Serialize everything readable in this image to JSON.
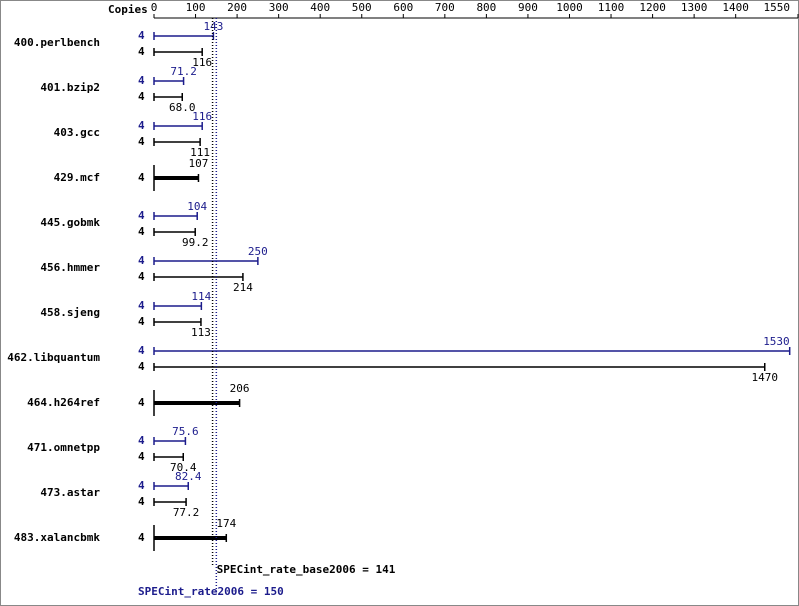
{
  "chart_data": {
    "type": "bar",
    "orientation": "horizontal",
    "x_label": "Copies",
    "categories": [
      "400.perlbench",
      "401.bzip2",
      "403.gcc",
      "429.mcf",
      "445.gobmk",
      "456.hmmer",
      "458.sjeng",
      "462.libquantum",
      "464.h264ref",
      "471.omnetpp",
      "473.astar",
      "483.xalancbmk"
    ],
    "series": [
      {
        "color": "#1c1c8c",
        "values": [
          143,
          71.2,
          116,
          null,
          104,
          250,
          114,
          1530,
          null,
          75.6,
          82.4,
          null
        ],
        "copies": [
          4,
          4,
          4,
          null,
          4,
          4,
          4,
          4,
          null,
          4,
          4,
          null
        ],
        "mean": 150,
        "mean_label": "SPECint_rate2006 = 150"
      },
      {
        "color": "#000000",
        "values": [
          116,
          68.0,
          111,
          107,
          99.2,
          214,
          113,
          1470,
          206,
          70.4,
          77.2,
          174
        ],
        "value_labels": [
          "116",
          "68.0",
          "111",
          "107",
          "99.2",
          "214",
          "113",
          "1470",
          "206",
          "70.4",
          "77.2",
          "174"
        ],
        "copies": [
          4,
          4,
          4,
          4,
          4,
          4,
          4,
          4,
          4,
          4,
          4,
          4
        ],
        "mean": 141,
        "mean_label": "SPECint_rate_base2006 = 141"
      }
    ],
    "xlim": [
      0,
      1550
    ],
    "xticks": [
      0,
      100,
      200,
      300,
      400,
      500,
      600,
      700,
      800,
      900,
      1000,
      1100,
      1200,
      1300,
      1400,
      1550
    ]
  }
}
